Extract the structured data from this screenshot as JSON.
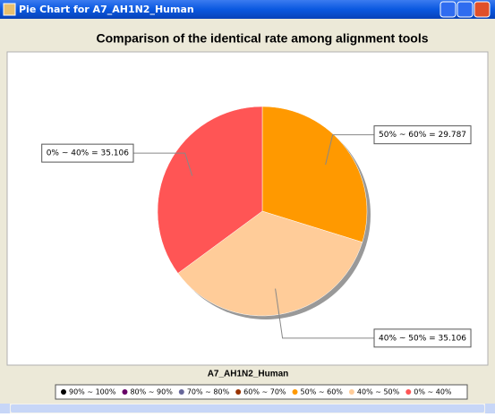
{
  "window": {
    "title": "Pie Chart for A7_AH1N2_Human"
  },
  "chart_data": {
    "type": "pie",
    "title": "Comparison of the identical rate among alignment tools",
    "subtitle": "A7_AH1N2_Human",
    "categories": [
      "90% ~ 100%",
      "80% ~ 90%",
      "70% ~ 80%",
      "60% ~ 70%",
      "50% ~ 60%",
      "40% ~ 50%",
      "0% ~ 40%"
    ],
    "values": [
      0,
      0,
      0,
      0,
      29.787,
      35.106,
      35.106
    ],
    "value_labels": [
      null,
      null,
      null,
      null,
      "50% ~ 60% = 29.787",
      "40% ~ 50% = 35.106",
      "0% ~ 40% = 35.106"
    ],
    "colors": [
      "#000000",
      "#660066",
      "#666699",
      "#993300",
      "#ff9900",
      "#ffcc99",
      "#ff5555"
    ],
    "legend": "bottom"
  }
}
